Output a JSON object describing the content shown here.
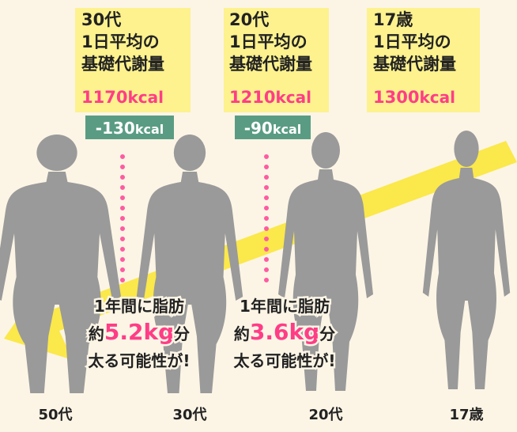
{
  "boxes": [
    {
      "age": "30代",
      "line1": "1日平均の",
      "line2": "基礎代謝量",
      "value": "1170",
      "unit": "kcal"
    },
    {
      "age": "20代",
      "line1": "1日平均の",
      "line2": "基礎代謝量",
      "value": "1210",
      "unit": "kcal"
    },
    {
      "age": "17歳",
      "line1": "1日平均の",
      "line2": "基礎代謝量",
      "value": "1300",
      "unit": "kcal"
    }
  ],
  "diffs": [
    {
      "value": "-130",
      "unit": "kcal"
    },
    {
      "value": "-90",
      "unit": "kcal"
    }
  ],
  "notes": [
    {
      "line1": "1年間に脂肪",
      "prefix": "約",
      "value": "5.2",
      "unit": "kg",
      "suffix": "分",
      "line3": "太る可能性が!"
    },
    {
      "line1": "1年間に脂肪",
      "prefix": "約",
      "value": "3.6",
      "unit": "kg",
      "suffix": "分",
      "line3": "太る可能性が!"
    }
  ],
  "labels": [
    "50代",
    "30代",
    "20代",
    "17歳"
  ]
}
